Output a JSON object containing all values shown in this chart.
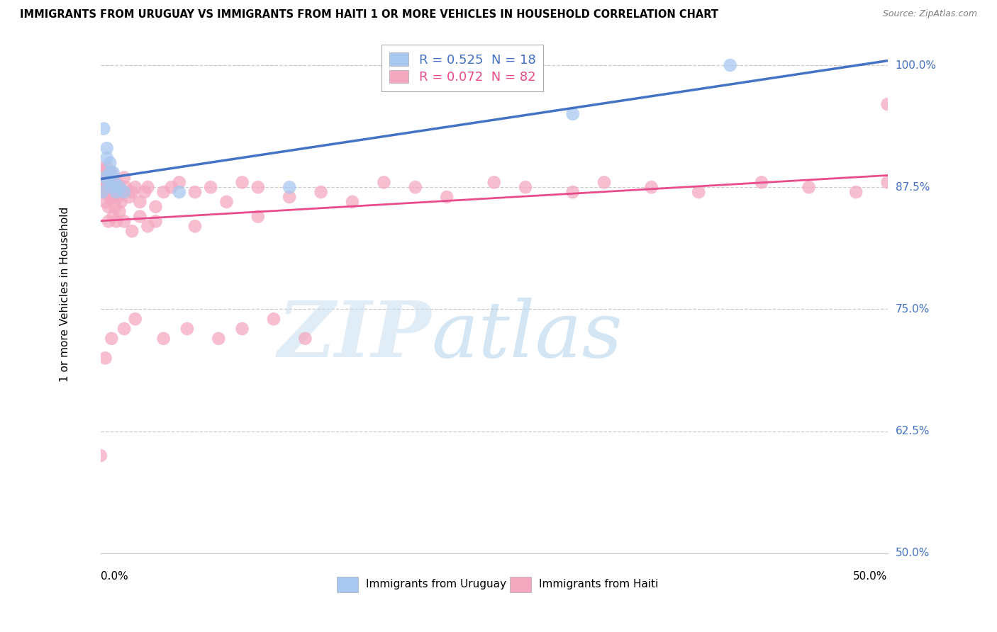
{
  "title": "IMMIGRANTS FROM URUGUAY VS IMMIGRANTS FROM HAITI 1 OR MORE VEHICLES IN HOUSEHOLD CORRELATION CHART",
  "source": "Source: ZipAtlas.com",
  "ylabel_labels": [
    "100.0%",
    "87.5%",
    "75.0%",
    "62.5%",
    "50.0%"
  ],
  "ylabel_values": [
    1.0,
    0.875,
    0.75,
    0.625,
    0.5
  ],
  "xmin": 0.0,
  "xmax": 0.5,
  "ymin": 0.5,
  "ymax": 1.03,
  "r_uruguay": 0.525,
  "n_uruguay": 18,
  "r_haiti": 0.072,
  "n_haiti": 82,
  "color_uruguay": "#a8c8f0",
  "color_haiti": "#f4a8c0",
  "trendline_uruguay": "#4472c4",
  "trendline_haiti": "#e84c8a",
  "legend_label_uruguay": "Immigrants from Uruguay",
  "legend_label_haiti": "Immigrants from Haiti",
  "watermark_zip": "ZIP",
  "watermark_atlas": "atlas",
  "uruguay_x": [
    0.001,
    0.002,
    0.003,
    0.004,
    0.004,
    0.005,
    0.006,
    0.006,
    0.007,
    0.008,
    0.009,
    0.01,
    0.012,
    0.015,
    0.05,
    0.12,
    0.3,
    0.4
  ],
  "uruguay_y": [
    0.87,
    0.935,
    0.885,
    0.905,
    0.915,
    0.88,
    0.89,
    0.9,
    0.875,
    0.89,
    0.88,
    0.87,
    0.875,
    0.87,
    0.87,
    0.875,
    0.95,
    1.0
  ],
  "haiti_x": [
    0.0,
    0.001,
    0.001,
    0.002,
    0.002,
    0.003,
    0.003,
    0.003,
    0.004,
    0.004,
    0.005,
    0.005,
    0.005,
    0.006,
    0.006,
    0.007,
    0.007,
    0.008,
    0.008,
    0.009,
    0.009,
    0.01,
    0.01,
    0.011,
    0.012,
    0.013,
    0.014,
    0.015,
    0.016,
    0.018,
    0.02,
    0.022,
    0.025,
    0.028,
    0.03,
    0.035,
    0.04,
    0.045,
    0.05,
    0.06,
    0.07,
    0.08,
    0.09,
    0.1,
    0.12,
    0.14,
    0.16,
    0.18,
    0.2,
    0.22,
    0.25,
    0.27,
    0.3,
    0.32,
    0.35,
    0.38,
    0.42,
    0.45,
    0.48,
    0.5,
    0.5,
    0.01,
    0.015,
    0.005,
    0.02,
    0.03,
    0.008,
    0.012,
    0.025,
    0.035,
    0.06,
    0.1,
    0.003,
    0.007,
    0.015,
    0.022,
    0.04,
    0.055,
    0.075,
    0.09,
    0.11,
    0.13
  ],
  "haiti_y": [
    0.6,
    0.88,
    0.895,
    0.875,
    0.87,
    0.89,
    0.88,
    0.86,
    0.875,
    0.895,
    0.885,
    0.87,
    0.855,
    0.88,
    0.865,
    0.875,
    0.89,
    0.88,
    0.865,
    0.875,
    0.855,
    0.88,
    0.87,
    0.865,
    0.875,
    0.86,
    0.87,
    0.885,
    0.875,
    0.865,
    0.87,
    0.875,
    0.86,
    0.87,
    0.875,
    0.855,
    0.87,
    0.875,
    0.88,
    0.87,
    0.875,
    0.86,
    0.88,
    0.875,
    0.865,
    0.87,
    0.86,
    0.88,
    0.875,
    0.865,
    0.88,
    0.875,
    0.87,
    0.88,
    0.875,
    0.87,
    0.88,
    0.875,
    0.87,
    0.88,
    0.96,
    0.84,
    0.84,
    0.84,
    0.83,
    0.835,
    0.845,
    0.85,
    0.845,
    0.84,
    0.835,
    0.845,
    0.7,
    0.72,
    0.73,
    0.74,
    0.72,
    0.73,
    0.72,
    0.73,
    0.74,
    0.72
  ]
}
